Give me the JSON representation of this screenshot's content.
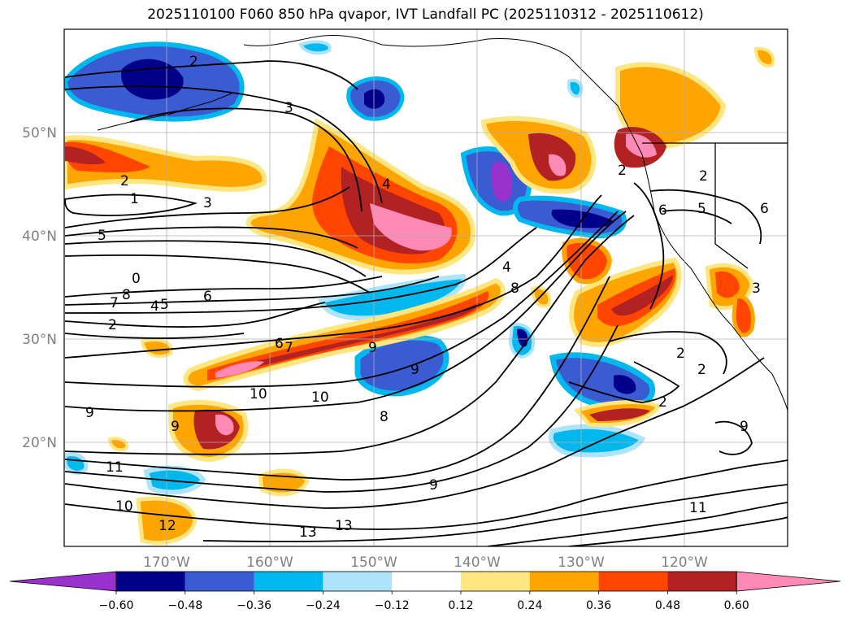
{
  "title": "2025110100 F060 850 hPa qvapor, IVT Landfall PC (2025110312 - 2025110612)",
  "map": {
    "lon_labels": [
      "170°W",
      "160°W",
      "150°W",
      "140°W",
      "130°W",
      "120°W"
    ],
    "lat_labels": [
      "50°N",
      "40°N",
      "30°N",
      "20°N"
    ],
    "colors": {
      "pos_3": "#ff8ab5",
      "pos_2": "#b22222",
      "pos_1": "#ff4500",
      "pos_0": "#ffa500",
      "pos_low": "#ffe680",
      "neg_low": "#ade3fb",
      "neg_1": "#00b7ee",
      "neg_2": "#3a5bd1",
      "neg_3": "#00008b",
      "neg_4": "#9932cc"
    },
    "contour_labels": [
      "2",
      "3",
      "2",
      "1",
      "3",
      "5",
      "4",
      "6",
      "7",
      "8",
      "0",
      "4",
      "5",
      "2",
      "6",
      "7",
      "9",
      "9",
      "10",
      "10",
      "8",
      "9",
      "9",
      "11",
      "10",
      "13",
      "13",
      "12",
      "4",
      "8",
      "9",
      "2",
      "2",
      "5",
      "6",
      "6",
      "3",
      "2",
      "2",
      "2",
      "9",
      "11"
    ]
  },
  "colorbar": {
    "ticks": [
      "−0.60",
      "−0.48",
      "−0.36",
      "−0.24",
      "−0.12",
      "0.12",
      "0.24",
      "0.36",
      "0.48",
      "0.60"
    ],
    "colors": [
      "#9932cc",
      "#00008b",
      "#3a5bd1",
      "#00b7ee",
      "#ade3fb",
      "#ffffff",
      "#ffe680",
      "#ffa500",
      "#ff4500",
      "#b22222",
      "#ff8ab5"
    ]
  }
}
